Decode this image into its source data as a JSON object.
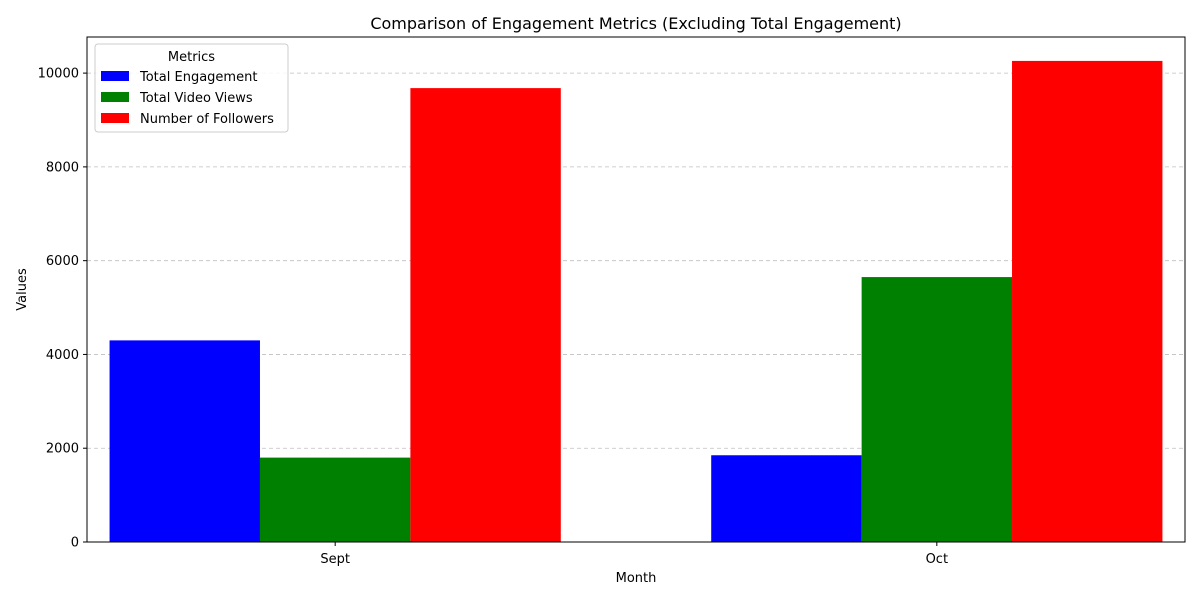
{
  "chart_data": {
    "type": "bar",
    "title": "Comparison of Engagement Metrics (Excluding Total Engagement)",
    "xlabel": "Month",
    "ylabel": "Values",
    "categories": [
      "Sept",
      "Oct"
    ],
    "ylim": [
      0,
      10770
    ],
    "yticks": [
      0,
      2000,
      4000,
      6000,
      8000,
      10000
    ],
    "grid": "y-dashed",
    "legend": {
      "title": "Metrics",
      "placement": "top-left"
    },
    "series": [
      {
        "name": "Total Engagement",
        "color": "#0000ff",
        "values": [
          4300,
          1850
        ]
      },
      {
        "name": "Total Video Views",
        "color": "#008000",
        "values": [
          1800,
          5650
        ]
      },
      {
        "name": "Number of Followers",
        "color": "#ff0000",
        "values": [
          9680,
          10260
        ]
      }
    ]
  }
}
